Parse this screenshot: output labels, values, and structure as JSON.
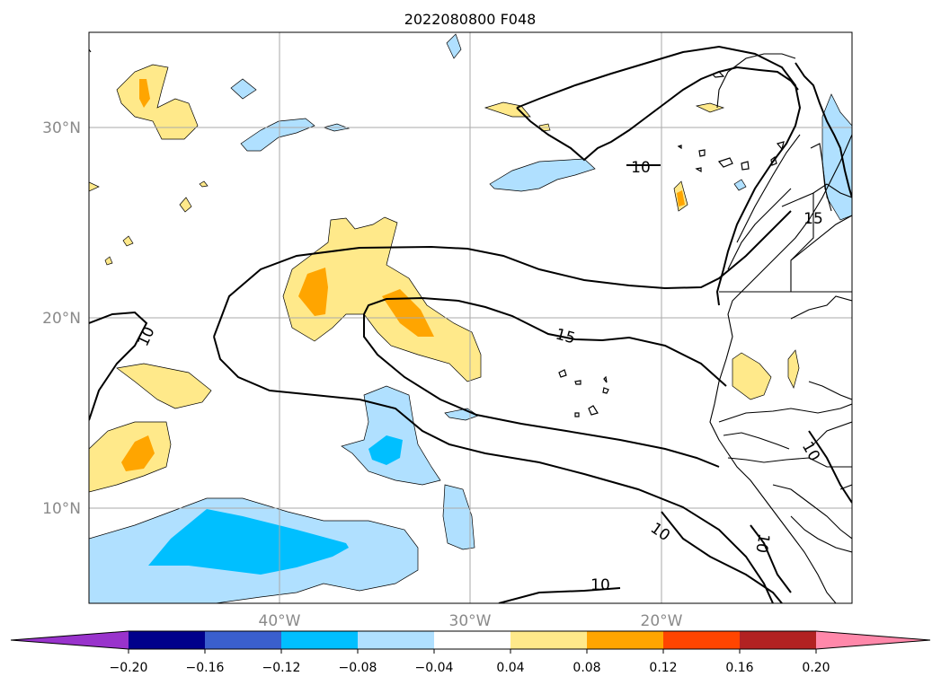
{
  "title": "2022080800 F048",
  "latitude_labels": [
    "30°N",
    "20°N",
    "10°N"
  ],
  "longitude_labels": [
    "40°W",
    "30°W",
    "20°W"
  ],
  "contour_labels": [
    "10",
    "15",
    "15",
    "10",
    "10",
    "10",
    "10",
    "10"
  ],
  "colorbar": {
    "tick_labels": [
      "−0.20",
      "−0.16",
      "−0.12",
      "−0.08",
      "−0.04",
      "0.04",
      "0.08",
      "0.12",
      "0.16",
      "0.20"
    ],
    "colors": [
      "#9933cc",
      "#00008b",
      "#3a5fcd",
      "#00bfff",
      "#b0e0ff",
      "#ffffff",
      "#ffe98a",
      "#ffa500",
      "#ff4500",
      "#b22222",
      "#ff88aa"
    ]
  },
  "shading_colors": {
    "light_blue": "#b0e0ff",
    "blue": "#00bfff",
    "light_yellow": "#ffe98a",
    "orange": "#ffa500"
  }
}
